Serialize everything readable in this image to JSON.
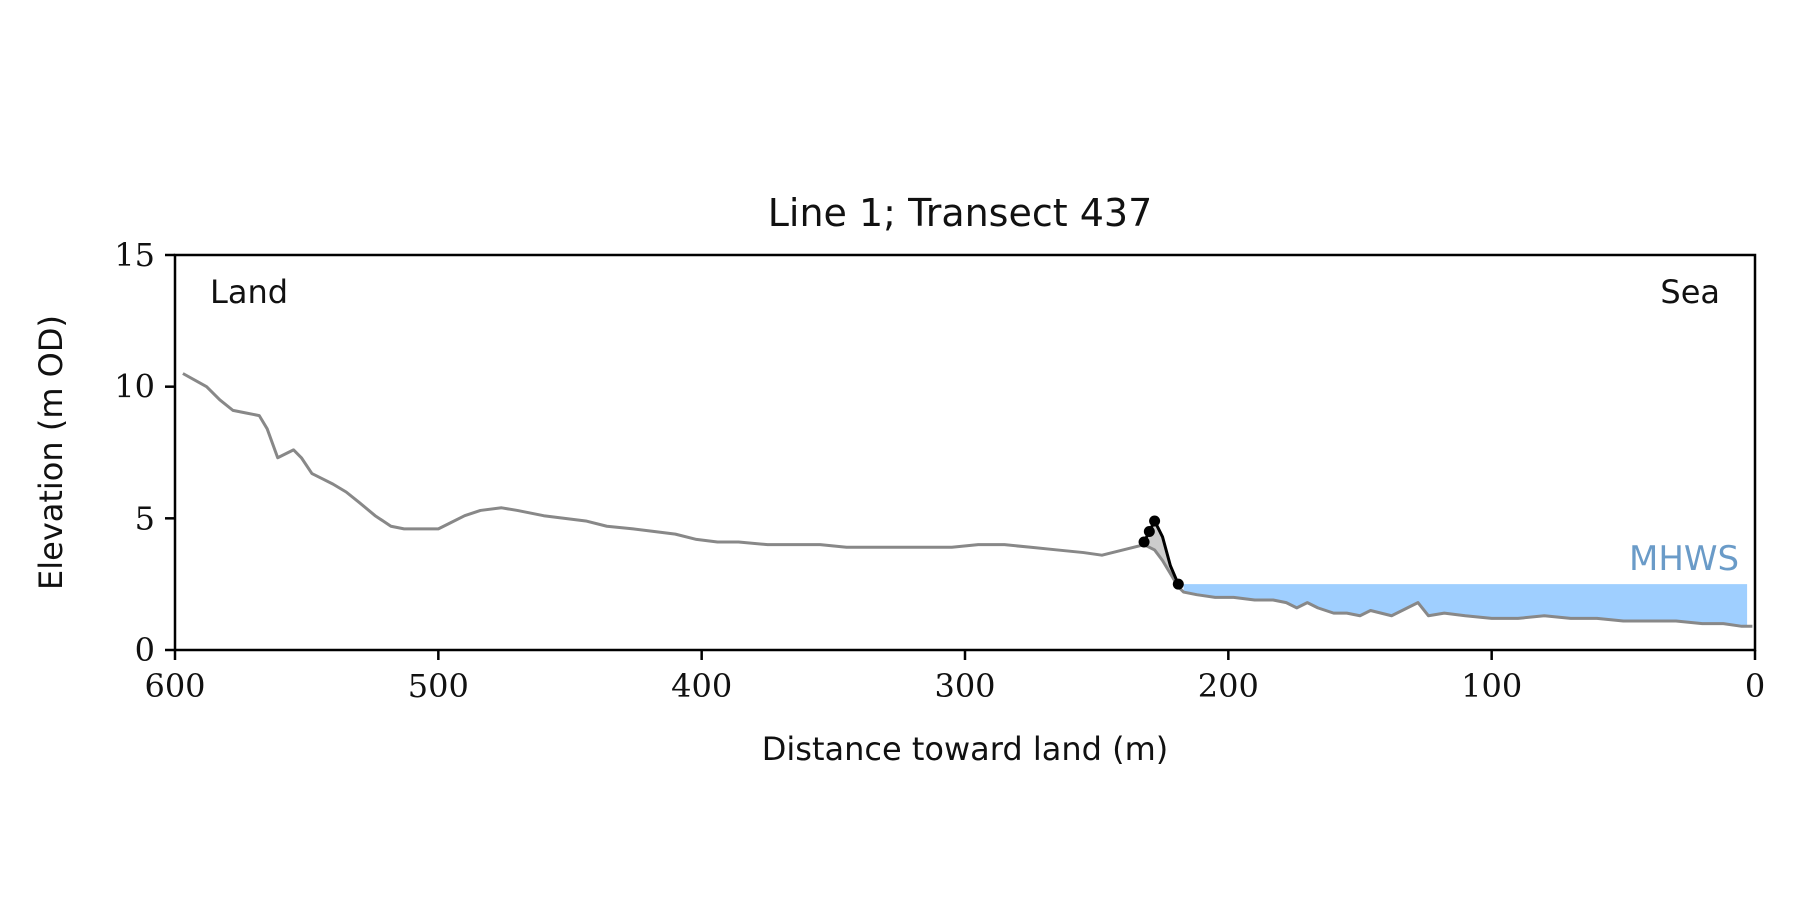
{
  "chart_data": {
    "type": "line",
    "title": "Line 1; Transect 437",
    "xlabel": "Distance toward land (m)",
    "ylabel": "Elevation (m OD)",
    "xlim": [
      600,
      0
    ],
    "ylim": [
      0,
      15
    ],
    "x_ticks": [
      600,
      500,
      400,
      300,
      200,
      100,
      0
    ],
    "y_ticks": [
      0,
      5,
      10,
      15
    ],
    "grid": false,
    "annotations": {
      "land": "Land",
      "sea": "Sea",
      "mhws": "MHWS"
    },
    "mhws_level": 2.5,
    "mhws_extent": [
      217,
      3
    ],
    "colors": {
      "profile": "#888888",
      "feature": "#000000",
      "feature_fill": "#cccccc",
      "water": "#9fcfff",
      "mhws_text": "#6a9bc8"
    },
    "series": [
      {
        "role": "profile",
        "x": [
          597,
          588,
          583,
          578,
          573,
          568,
          565,
          561,
          559,
          555,
          552,
          548,
          544,
          540,
          535,
          530,
          524,
          518,
          513,
          510,
          500,
          496,
          490,
          484,
          476,
          470,
          460,
          452,
          444,
          436,
          426,
          418,
          410,
          402,
          394,
          386,
          375,
          365,
          355,
          345,
          335,
          325,
          315,
          305,
          295,
          285,
          275,
          265,
          255,
          248,
          240,
          232,
          228,
          225,
          222,
          219,
          217,
          212,
          205,
          198,
          190,
          183,
          178,
          174,
          170,
          166,
          160,
          155,
          150,
          146,
          142,
          138,
          132,
          128,
          124,
          118,
          110,
          100,
          90,
          80,
          70,
          60,
          50,
          40,
          30,
          20,
          12,
          5,
          1
        ],
        "y": [
          10.5,
          10.0,
          9.5,
          9.1,
          9.0,
          8.9,
          8.4,
          7.3,
          7.4,
          7.6,
          7.3,
          6.7,
          6.5,
          6.3,
          6.0,
          5.6,
          5.1,
          4.7,
          4.6,
          4.6,
          4.6,
          4.8,
          5.1,
          5.3,
          5.4,
          5.3,
          5.1,
          5.0,
          4.9,
          4.7,
          4.6,
          4.5,
          4.4,
          4.2,
          4.1,
          4.1,
          4.0,
          4.0,
          4.0,
          3.9,
          3.9,
          3.9,
          3.9,
          3.9,
          4.0,
          4.0,
          3.9,
          3.8,
          3.7,
          3.6,
          3.8,
          4.0,
          3.8,
          3.4,
          2.9,
          2.4,
          2.2,
          2.1,
          2.0,
          2.0,
          1.9,
          1.9,
          1.8,
          1.6,
          1.8,
          1.6,
          1.4,
          1.4,
          1.3,
          1.5,
          1.4,
          1.3,
          1.6,
          1.8,
          1.3,
          1.4,
          1.3,
          1.2,
          1.2,
          1.3,
          1.2,
          1.2,
          1.1,
          1.1,
          1.1,
          1.0,
          1.0,
          0.9,
          0.9
        ]
      },
      {
        "role": "feature",
        "x": [
          232,
          230,
          228,
          225,
          222,
          219
        ],
        "y": [
          4.1,
          4.5,
          4.9,
          4.3,
          3.2,
          2.5
        ]
      }
    ],
    "feature_points": {
      "x": [
        232,
        230,
        228,
        219
      ],
      "y": [
        4.1,
        4.5,
        4.9,
        2.5
      ]
    }
  }
}
